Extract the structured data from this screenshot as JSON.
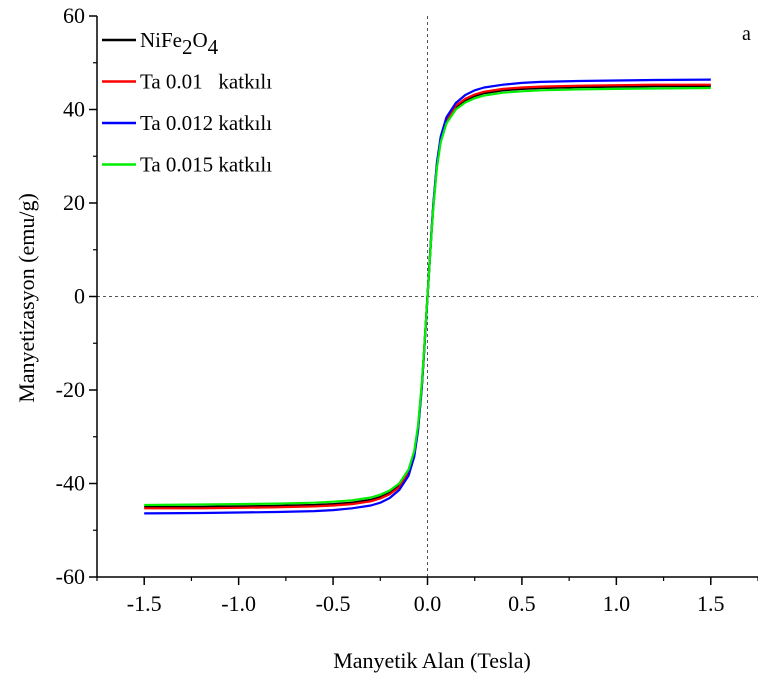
{
  "chart_data": {
    "type": "line",
    "panel_label": "a",
    "xlabel": "Manyetik Alan (Tesla)",
    "ylabel": "Manyetizasyon (emu/g)",
    "xlim": [
      -1.75,
      1.75
    ],
    "ylim": [
      -60,
      60
    ],
    "xticks": [
      -1.5,
      -1.0,
      -0.5,
      0.0,
      0.5,
      1.0,
      1.5
    ],
    "xtick_labels": [
      "-1.5",
      "-1.0",
      "-0.5",
      "0.0",
      "0.5",
      "1.0",
      "1.5"
    ],
    "yticks": [
      -60,
      -40,
      -20,
      0,
      20,
      40,
      60
    ],
    "ytick_labels": [
      "-60",
      "-40",
      "-20",
      "0",
      "20",
      "40",
      "60"
    ],
    "reference_lines": {
      "x": 0,
      "y": 0,
      "style": "dotted"
    },
    "legend_position": "top-left",
    "x": [
      -1.5,
      -1.2,
      -1.0,
      -0.8,
      -0.6,
      -0.5,
      -0.4,
      -0.3,
      -0.25,
      -0.2,
      -0.15,
      -0.1,
      -0.07,
      -0.05,
      -0.03,
      -0.02,
      -0.01,
      0.0,
      0.01,
      0.02,
      0.03,
      0.05,
      0.07,
      0.1,
      0.15,
      0.2,
      0.25,
      0.3,
      0.4,
      0.5,
      0.6,
      0.8,
      1.0,
      1.2,
      1.5
    ],
    "series": [
      {
        "name": "NiFe2O4",
        "legend_label": {
          "base": "NiFe",
          "sub1": "2",
          "mid": "O",
          "sub2": "4"
        },
        "color": "#000000",
        "values": [
          -45.0,
          -45.0,
          -44.9,
          -44.8,
          -44.6,
          -44.4,
          -44.1,
          -43.5,
          -42.9,
          -42.0,
          -40.5,
          -37.5,
          -33.5,
          -28.0,
          -19.0,
          -13.0,
          -6.5,
          0.0,
          6.5,
          13.0,
          19.0,
          28.0,
          33.5,
          37.5,
          40.5,
          42.0,
          42.9,
          43.5,
          44.1,
          44.4,
          44.6,
          44.8,
          44.9,
          45.0,
          45.0
        ]
      },
      {
        "name": "Ta 0.01   katkılı",
        "color": "#ff0000",
        "values": [
          -45.3,
          -45.3,
          -45.2,
          -45.1,
          -44.9,
          -44.7,
          -44.4,
          -43.8,
          -43.2,
          -42.3,
          -40.8,
          -37.8,
          -33.8,
          -28.2,
          -19.2,
          -13.1,
          -6.6,
          0.0,
          6.6,
          13.1,
          19.2,
          28.2,
          33.8,
          37.8,
          40.8,
          42.3,
          43.2,
          43.8,
          44.4,
          44.7,
          44.9,
          45.1,
          45.2,
          45.3,
          45.3
        ]
      },
      {
        "name": "Ta 0.012 katkılı",
        "color": "#0000ff",
        "values": [
          -46.4,
          -46.3,
          -46.2,
          -46.1,
          -45.9,
          -45.7,
          -45.3,
          -44.7,
          -44.1,
          -43.1,
          -41.4,
          -38.3,
          -34.2,
          -28.6,
          -19.5,
          -13.3,
          -6.7,
          0.0,
          6.7,
          13.3,
          19.5,
          28.6,
          34.2,
          38.3,
          41.4,
          43.1,
          44.1,
          44.7,
          45.3,
          45.7,
          45.9,
          46.1,
          46.2,
          46.3,
          46.4
        ]
      },
      {
        "name": "Ta 0.015 katkılı",
        "color": "#00ee00",
        "values": [
          -44.6,
          -44.5,
          -44.4,
          -44.3,
          -44.1,
          -43.9,
          -43.6,
          -43.0,
          -42.4,
          -41.5,
          -40.0,
          -37.0,
          -33.0,
          -27.5,
          -18.6,
          -12.7,
          -6.4,
          0.0,
          6.4,
          12.7,
          18.6,
          27.5,
          33.0,
          37.0,
          40.0,
          41.5,
          42.4,
          43.0,
          43.6,
          43.9,
          44.1,
          44.3,
          44.4,
          44.5,
          44.6
        ]
      }
    ]
  }
}
